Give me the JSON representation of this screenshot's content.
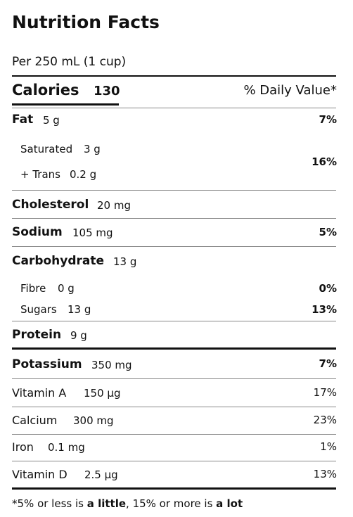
{
  "label": {
    "title": "Nutrition Facts",
    "serving": "Per 250 mL (1 cup)",
    "calories_label": "Calories",
    "calories_value": "130",
    "dv_header": "% Daily Value*",
    "fat": {
      "name": "Fat",
      "amount": "5 g",
      "dv": "7%"
    },
    "saturated": {
      "name": "Saturated",
      "amount": "3 g"
    },
    "trans": {
      "name": "+ Trans",
      "amount": "0.2 g"
    },
    "sat_trans_dv": "16%",
    "cholesterol": {
      "name": "Cholesterol",
      "amount": "20 mg"
    },
    "sodium": {
      "name": "Sodium",
      "amount": "105 mg",
      "dv": "5%"
    },
    "carbohydrate": {
      "name": "Carbohydrate",
      "amount": "13 g"
    },
    "fibre": {
      "name": "Fibre",
      "amount": "0 g",
      "dv": "0%"
    },
    "sugars": {
      "name": "Sugars",
      "amount": "13 g",
      "dv": "13%"
    },
    "protein": {
      "name": "Protein",
      "amount": "9 g"
    },
    "potassium": {
      "name": "Potassium",
      "amount": "350 mg",
      "dv": "7%"
    },
    "vitamin_a": {
      "name": "Vitamin A",
      "amount": "150 µg",
      "dv": "17%"
    },
    "calcium": {
      "name": "Calcium",
      "amount": "300 mg",
      "dv": "23%"
    },
    "iron": {
      "name": "Iron",
      "amount": "0.1 mg",
      "dv": "1%"
    },
    "vitamin_d": {
      "name": "Vitamin D",
      "amount": "2.5 µg",
      "dv": "13%"
    },
    "footnote": {
      "prefix": "*5% or less is ",
      "little": "a little",
      "middle": ", 15% or more is ",
      "lot": "a lot"
    }
  }
}
